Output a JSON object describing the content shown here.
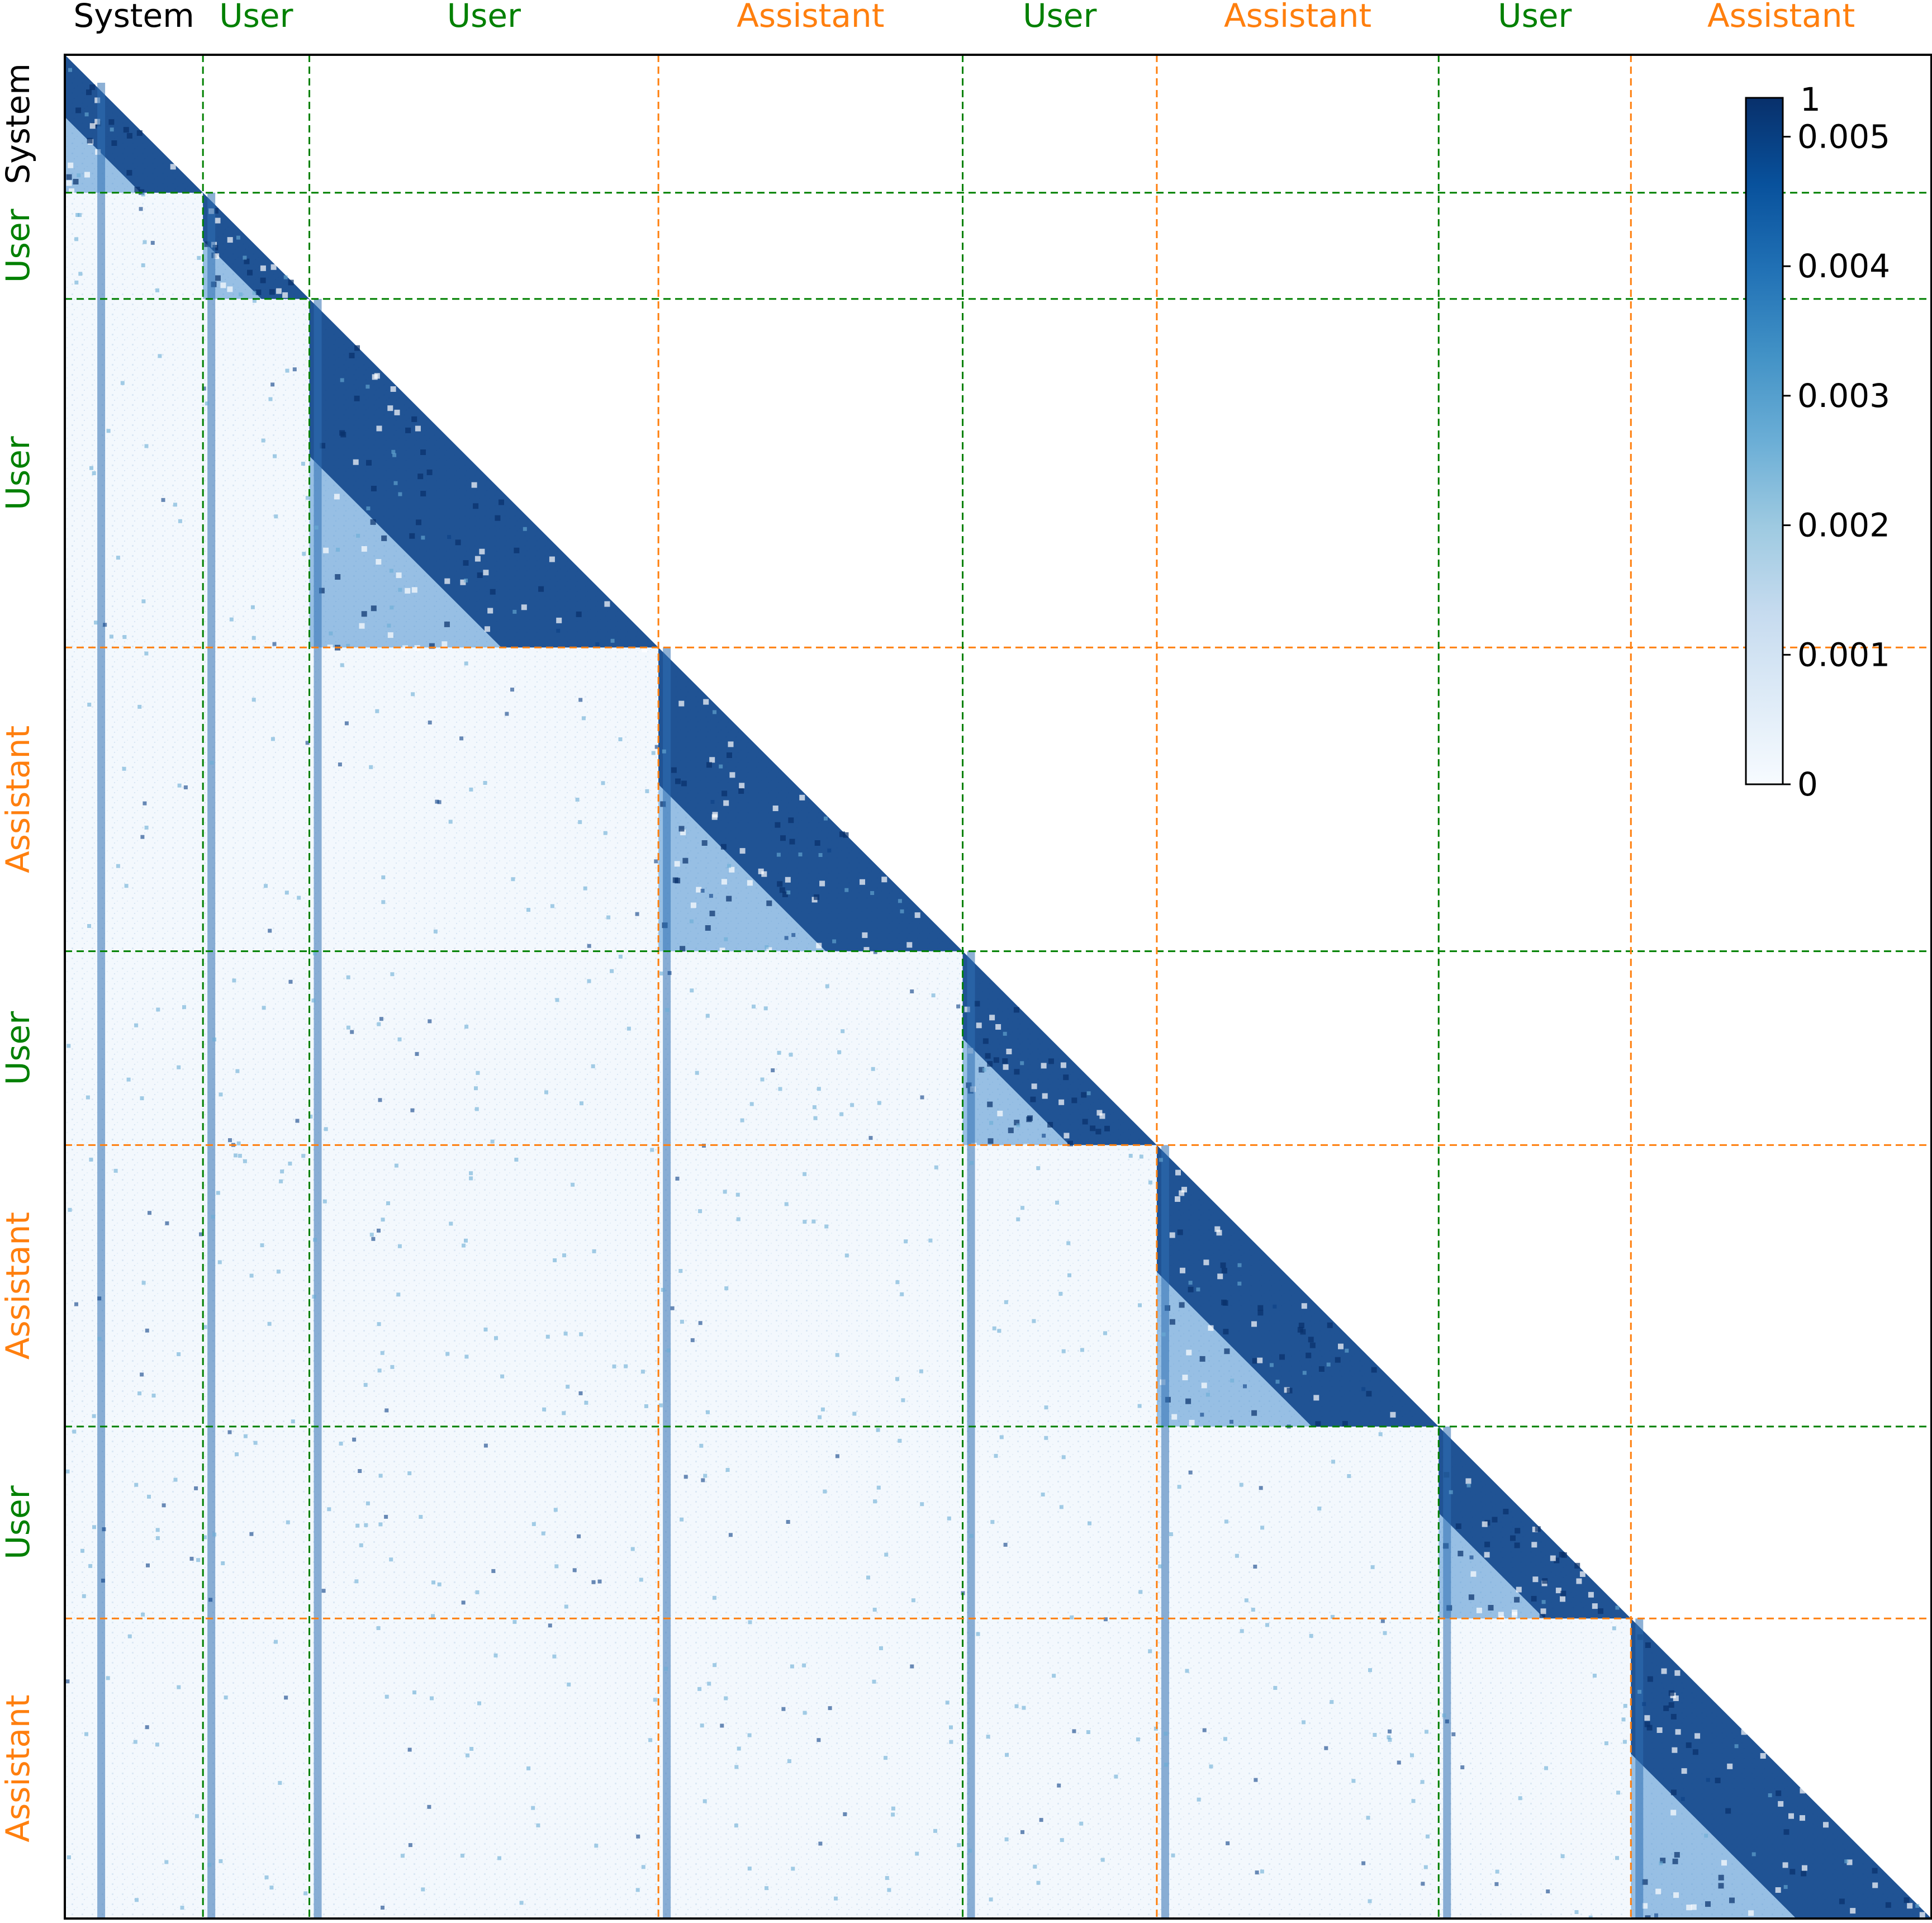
{
  "colors": {
    "system": "#000000",
    "user": "#008000",
    "assistant": "#ff7f0e",
    "cmap_low": "#f7fbff",
    "cmap_high": "#08306b"
  },
  "chart_data": {
    "type": "heatmap",
    "title": "",
    "xlabel": "",
    "ylabel": "",
    "mask": "lower-triangular",
    "segments": [
      {
        "role": "system",
        "label": "System",
        "start": 0.0,
        "end": 0.074
      },
      {
        "role": "user",
        "label": "User",
        "start": 0.074,
        "end": 0.131
      },
      {
        "role": "user",
        "label": "User",
        "start": 0.131,
        "end": 0.318
      },
      {
        "role": "assistant",
        "label": "Assistant",
        "start": 0.318,
        "end": 0.481
      },
      {
        "role": "user",
        "label": "User",
        "start": 0.481,
        "end": 0.585
      },
      {
        "role": "assistant",
        "label": "Assistant",
        "start": 0.585,
        "end": 0.736
      },
      {
        "role": "user",
        "label": "User",
        "start": 0.736,
        "end": 0.839
      },
      {
        "role": "assistant",
        "label": "Assistant",
        "start": 0.839,
        "end": 1.0
      }
    ],
    "colorbar": {
      "min": 0,
      "max": 0.0053,
      "top_label": "1",
      "ticks": [
        {
          "value": 0,
          "label": "0"
        },
        {
          "value": 0.001,
          "label": "0.001"
        },
        {
          "value": 0.002,
          "label": "0.002"
        },
        {
          "value": 0.003,
          "label": "0.003"
        },
        {
          "value": 0.004,
          "label": "0.004"
        },
        {
          "value": 0.005,
          "label": "0.005"
        }
      ]
    }
  }
}
